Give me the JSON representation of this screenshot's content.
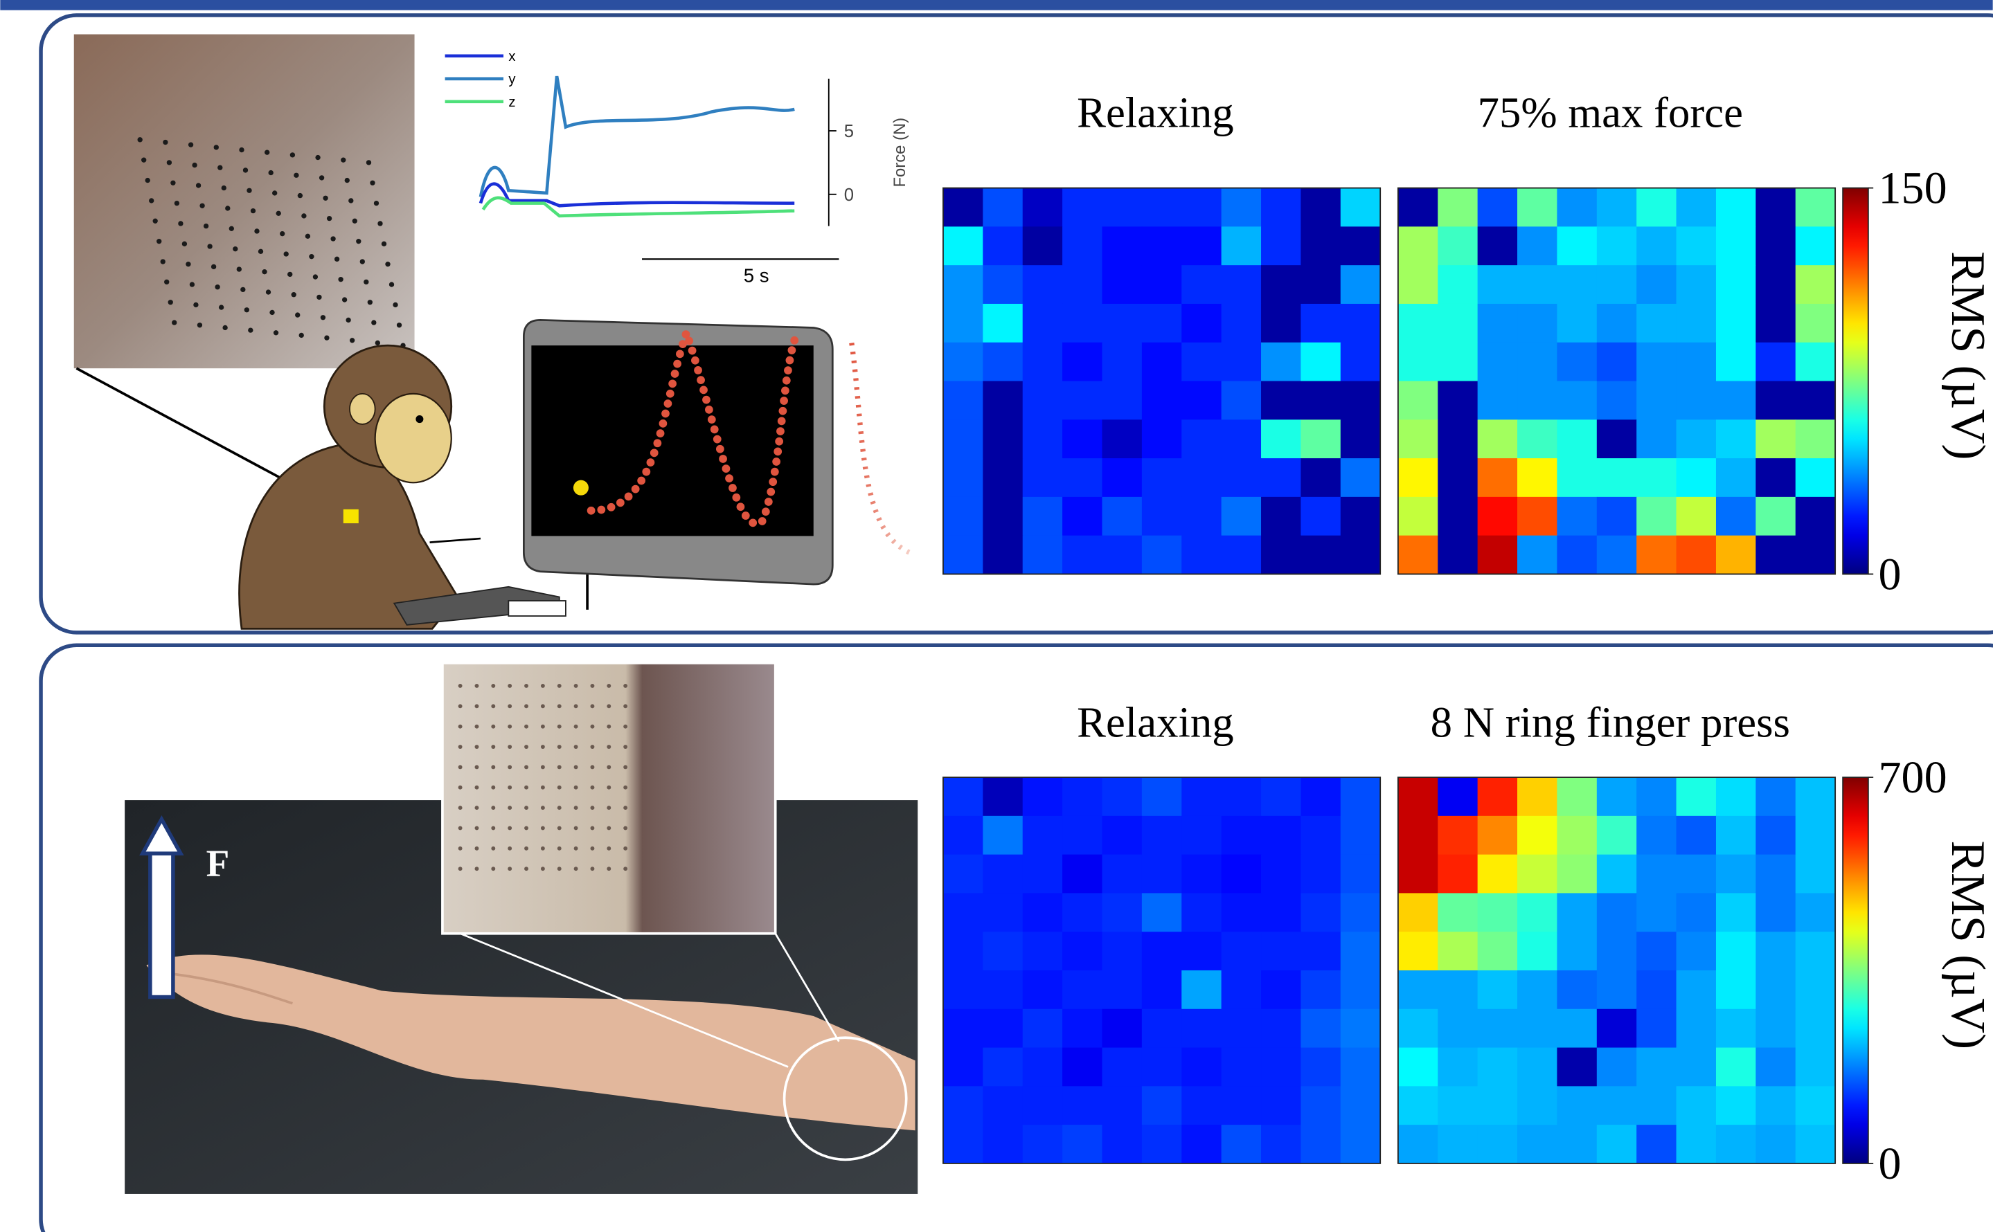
{
  "top_panel": {
    "force_plot": {
      "series": [
        {
          "name": "x",
          "color": "#1a2fd8"
        },
        {
          "name": "y",
          "color": "#2f7fc0"
        },
        {
          "name": "z",
          "color": "#4ee07a"
        }
      ],
      "ylabel": "Force (N)",
      "ylim": [
        -2.5,
        9.1
      ],
      "yticks": [
        5,
        0
      ],
      "scalebar": "5 s"
    },
    "heatmaps": [
      {
        "title": "Relaxing",
        "values": [
          [
            5,
            30,
            10,
            25,
            25,
            25,
            25,
            35,
            25,
            5,
            50
          ],
          [
            55,
            25,
            5,
            25,
            20,
            20,
            20,
            45,
            25,
            5,
            5
          ],
          [
            40,
            30,
            25,
            25,
            20,
            20,
            25,
            25,
            5,
            5,
            40
          ],
          [
            40,
            55,
            25,
            25,
            25,
            25,
            20,
            25,
            5,
            25,
            25
          ],
          [
            35,
            30,
            25,
            20,
            25,
            20,
            25,
            25,
            40,
            55,
            25
          ],
          [
            30,
            5,
            25,
            25,
            25,
            20,
            20,
            30,
            5,
            5,
            5
          ],
          [
            30,
            5,
            25,
            20,
            10,
            20,
            25,
            25,
            60,
            70,
            5
          ],
          [
            30,
            5,
            25,
            25,
            20,
            25,
            25,
            25,
            25,
            5,
            35
          ],
          [
            30,
            5,
            30,
            20,
            30,
            25,
            25,
            35,
            5,
            25,
            5
          ],
          [
            30,
            5,
            30,
            25,
            25,
            30,
            25,
            25,
            5,
            5,
            5
          ]
        ]
      },
      {
        "title": "75% max force",
        "values": [
          [
            5,
            75,
            30,
            70,
            40,
            45,
            60,
            45,
            55,
            5,
            70
          ],
          [
            80,
            65,
            5,
            40,
            55,
            50,
            45,
            50,
            55,
            5,
            55
          ],
          [
            80,
            60,
            45,
            45,
            45,
            45,
            40,
            45,
            55,
            5,
            80
          ],
          [
            60,
            60,
            40,
            40,
            45,
            40,
            45,
            45,
            55,
            5,
            75
          ],
          [
            60,
            60,
            40,
            40,
            35,
            30,
            40,
            40,
            55,
            25,
            60
          ],
          [
            75,
            5,
            40,
            40,
            40,
            35,
            40,
            40,
            40,
            5,
            5
          ],
          [
            80,
            5,
            80,
            65,
            60,
            5,
            40,
            45,
            50,
            80,
            75
          ],
          [
            95,
            5,
            115,
            95,
            60,
            60,
            60,
            55,
            45,
            5,
            55
          ],
          [
            85,
            5,
            130,
            120,
            35,
            30,
            70,
            85,
            35,
            70,
            5
          ],
          [
            115,
            5,
            140,
            40,
            30,
            35,
            115,
            120,
            105,
            5,
            5
          ]
        ]
      }
    ],
    "colorbar": {
      "label": "RMS (µV)",
      "zlim": [
        0,
        150
      ],
      "ticks": [
        150,
        0
      ]
    }
  },
  "bottom_panel": {
    "arrow_label": "F",
    "heatmaps": [
      {
        "title": "Relaxing",
        "values": [
          [
            120,
            40,
            100,
            110,
            120,
            140,
            110,
            110,
            120,
            100,
            140
          ],
          [
            110,
            170,
            110,
            110,
            100,
            110,
            110,
            100,
            100,
            110,
            140
          ],
          [
            120,
            110,
            110,
            80,
            110,
            110,
            100,
            90,
            100,
            110,
            140
          ],
          [
            110,
            110,
            100,
            110,
            120,
            160,
            110,
            100,
            100,
            120,
            150
          ],
          [
            110,
            120,
            110,
            100,
            110,
            100,
            100,
            110,
            110,
            110,
            160
          ],
          [
            110,
            110,
            100,
            110,
            110,
            100,
            200,
            110,
            100,
            130,
            160
          ],
          [
            100,
            100,
            120,
            100,
            80,
            110,
            110,
            110,
            110,
            150,
            170
          ],
          [
            100,
            120,
            110,
            80,
            110,
            110,
            100,
            110,
            110,
            130,
            160
          ],
          [
            120,
            110,
            110,
            110,
            110,
            130,
            110,
            110,
            110,
            140,
            160
          ],
          [
            120,
            110,
            120,
            130,
            110,
            120,
            100,
            140,
            120,
            140,
            160
          ]
        ]
      },
      {
        "title": "8 N ring finger press",
        "values": [
          [
            650,
            80,
            590,
            470,
            350,
            200,
            180,
            280,
            240,
            170,
            220
          ],
          [
            650,
            580,
            520,
            430,
            370,
            300,
            170,
            150,
            220,
            150,
            220
          ],
          [
            650,
            590,
            450,
            400,
            360,
            220,
            180,
            180,
            200,
            170,
            220
          ],
          [
            470,
            330,
            320,
            290,
            200,
            170,
            180,
            170,
            230,
            170,
            200
          ],
          [
            450,
            380,
            340,
            280,
            200,
            170,
            150,
            180,
            250,
            200,
            220
          ],
          [
            200,
            200,
            220,
            200,
            160,
            170,
            140,
            200,
            250,
            200,
            220
          ],
          [
            220,
            200,
            200,
            200,
            200,
            60,
            140,
            200,
            220,
            200,
            220
          ],
          [
            260,
            210,
            220,
            210,
            30,
            180,
            200,
            200,
            280,
            180,
            220
          ],
          [
            230,
            220,
            220,
            210,
            200,
            200,
            200,
            220,
            240,
            210,
            230
          ],
          [
            200,
            210,
            210,
            200,
            200,
            220,
            140,
            220,
            210,
            200,
            220
          ]
        ]
      }
    ],
    "colorbar": {
      "label": "RMS (µV)",
      "zlim": [
        0,
        700
      ],
      "ticks": [
        700,
        0
      ]
    }
  }
}
